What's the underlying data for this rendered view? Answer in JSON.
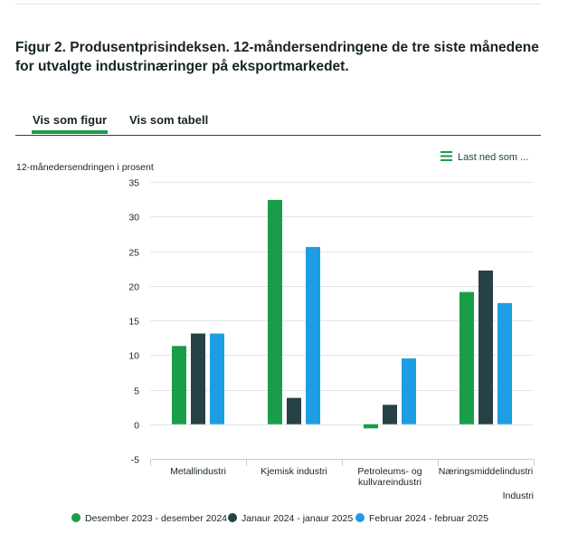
{
  "page": {
    "title": "Figur 2. Produsentprisindeksen. 12-måndersendringene de tre siste månedene for utvalgte industrinæringer på eksportmarkedet."
  },
  "tabs": [
    {
      "label": "Vis som figur",
      "active": true
    },
    {
      "label": "Vis som tabell",
      "active": false
    }
  ],
  "download": {
    "label": "Last ned som ...",
    "icon": "menu-icon"
  },
  "chart_data": {
    "type": "bar",
    "ylabel": "12-månedersendringen i prosent",
    "xlabel": "Industri",
    "ylim": [
      -5,
      35
    ],
    "yticks": [
      -5,
      0,
      5,
      10,
      15,
      20,
      25,
      30,
      35
    ],
    "grid": true,
    "legend_position": "bottom-center",
    "categories": [
      [
        "Metallindustri"
      ],
      [
        "Kjemisk industri"
      ],
      [
        "Petroleums- og",
        "kullvareindustri"
      ],
      [
        "Næringsmiddelindustri"
      ]
    ],
    "series": [
      {
        "name": "Desember 2023 - desember 2024",
        "color": "#1a9d49",
        "values": [
          11.3,
          32.4,
          -0.6,
          19.1
        ]
      },
      {
        "name": "Janaur 2024 - janaur 2025",
        "color": "#274247",
        "values": [
          13.1,
          3.8,
          2.8,
          22.2
        ]
      },
      {
        "name": "Februar 2024 - februar 2025",
        "color": "#1d9de2",
        "values": [
          13.1,
          25.6,
          9.5,
          17.5
        ]
      }
    ]
  }
}
